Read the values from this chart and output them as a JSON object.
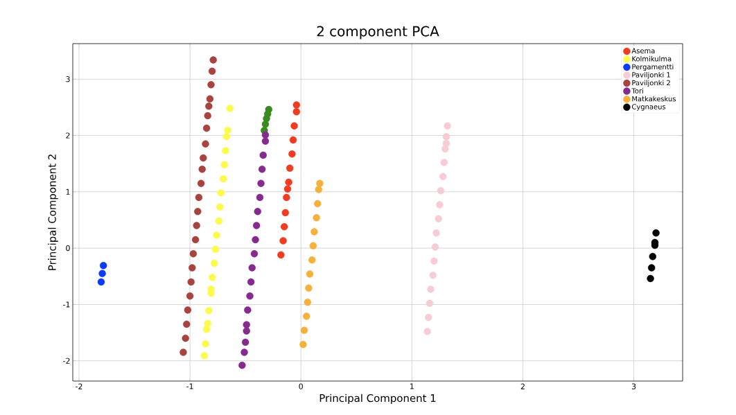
{
  "chart_data": {
    "type": "scatter",
    "title": "2 component PCA",
    "xlabel": "Principal Component 1",
    "ylabel": "Principal Component 2",
    "xlim": [
      -2.056,
      3.44
    ],
    "ylim": [
      -2.36,
      3.63
    ],
    "xticks": [
      -2,
      -1,
      0,
      1,
      2,
      3
    ],
    "yticks": [
      -2,
      -1,
      0,
      1,
      2,
      3
    ],
    "grid": true,
    "legend": "top right",
    "marker": "circle",
    "series": [
      {
        "name": "Asema",
        "color": "#f03c22",
        "x": [
          -0.18,
          -0.16,
          -0.15,
          -0.14,
          -0.13,
          -0.12,
          -0.11,
          -0.1,
          -0.08,
          -0.07,
          -0.06,
          -0.04,
          -0.04
        ],
        "values": [
          -0.12,
          0.13,
          0.38,
          0.63,
          0.9,
          1.05,
          1.17,
          1.42,
          1.67,
          1.92,
          2.17,
          2.42,
          2.54
        ]
      },
      {
        "name": "Kolmikulma",
        "color": "#fdfa4e",
        "x": [
          -0.87,
          -0.86,
          -0.85,
          -0.84,
          -0.83,
          -0.81,
          -0.81,
          -0.8,
          -0.78,
          -0.77,
          -0.76,
          -0.74,
          -0.73,
          -0.72,
          -0.7,
          -0.69,
          -0.68,
          -0.67,
          -0.66,
          -0.64
        ],
        "values": [
          -1.91,
          -1.7,
          -1.44,
          -1.34,
          -1.11,
          -0.8,
          -0.73,
          -0.52,
          -0.27,
          -0.02,
          0.23,
          0.48,
          0.73,
          0.98,
          1.23,
          1.48,
          1.73,
          1.98,
          2.09,
          2.48
        ]
      },
      {
        "color": "#3a8a22",
        "x": [
          -0.33,
          -0.32,
          -0.31,
          -0.3,
          -0.29
        ],
        "values": [
          2.09,
          2.2,
          2.3,
          2.38,
          2.46
        ]
      },
      {
        "name": "Pergamentti",
        "color": "#0a3cf8",
        "x": [
          -1.8,
          -1.79,
          -1.78
        ],
        "values": [
          -0.6,
          -0.45,
          -0.31
        ]
      },
      {
        "name": "Paviljonki 1",
        "color": "#f7cdd5",
        "x": [
          1.14,
          1.15,
          1.16,
          1.17,
          1.19,
          1.2,
          1.21,
          1.22,
          1.24,
          1.25,
          1.26,
          1.28,
          1.29,
          1.3,
          1.31,
          1.31,
          1.32
        ],
        "values": [
          -1.48,
          -1.23,
          -0.98,
          -0.73,
          -0.48,
          -0.23,
          0.02,
          0.27,
          0.52,
          0.77,
          1.02,
          1.27,
          1.52,
          1.76,
          1.86,
          1.98,
          2.17
        ]
      },
      {
        "name": "Paviljonki 2",
        "color": "#a84440",
        "x": [
          -1.06,
          -1.04,
          -1.03,
          -1.02,
          -1.0,
          -0.99,
          -0.98,
          -0.97,
          -0.95,
          -0.94,
          -0.93,
          -0.92,
          -0.9,
          -0.89,
          -0.88,
          -0.86,
          -0.85,
          -0.84,
          -0.83,
          -0.82,
          -0.81,
          -0.8,
          -0.79
        ],
        "values": [
          -1.85,
          -1.6,
          -1.35,
          -1.1,
          -0.85,
          -0.6,
          -0.35,
          -0.1,
          0.15,
          0.4,
          0.65,
          0.9,
          1.15,
          1.4,
          1.6,
          1.85,
          2.13,
          2.35,
          2.52,
          2.65,
          2.9,
          3.14,
          3.34
        ]
      },
      {
        "name": "Tori",
        "color": "#852b8e",
        "x": [
          -0.53,
          -0.51,
          -0.5,
          -0.49,
          -0.49,
          -0.48,
          -0.46,
          -0.45,
          -0.44,
          -0.42,
          -0.41,
          -0.4,
          -0.39,
          -0.37,
          -0.36,
          -0.35,
          -0.34,
          -0.32,
          -0.32
        ],
        "values": [
          -2.08,
          -1.85,
          -1.67,
          -1.47,
          -1.36,
          -1.1,
          -0.85,
          -0.6,
          -0.35,
          -0.1,
          0.15,
          0.4,
          0.65,
          0.9,
          1.15,
          1.4,
          1.65,
          1.9,
          2.01
        ]
      },
      {
        "name": "Matkakeskus",
        "color": "#f5b13d",
        "x": [
          0.02,
          0.03,
          0.05,
          0.06,
          0.07,
          0.08,
          0.1,
          0.11,
          0.12,
          0.14,
          0.15,
          0.16,
          0.17
        ],
        "values": [
          -1.71,
          -1.46,
          -1.21,
          -0.96,
          -0.71,
          -0.46,
          -0.21,
          0.04,
          0.29,
          0.54,
          0.79,
          1.04,
          1.15
        ]
      },
      {
        "name": "Cygnaeus",
        "color": "#000000",
        "x": [
          3.15,
          3.16,
          3.17,
          3.19,
          3.19,
          3.2
        ],
        "values": [
          -0.54,
          -0.35,
          -0.15,
          0.05,
          0.1,
          0.27
        ]
      }
    ]
  }
}
